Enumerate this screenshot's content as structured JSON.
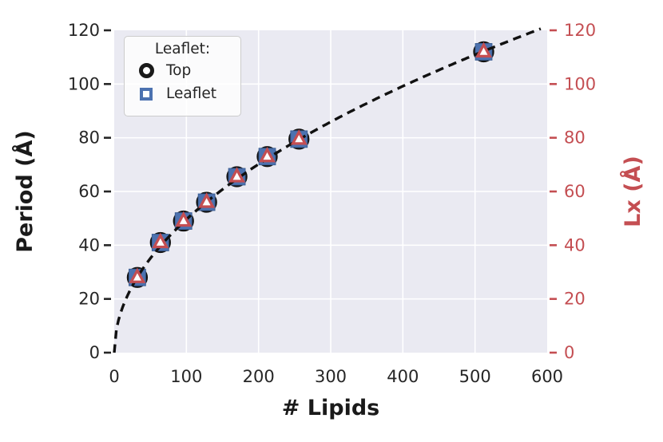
{
  "colors": {
    "figure_bg": "#ffffff",
    "plot_bg": "#eaeaf2",
    "grid": "#ffffff",
    "blue": "#4c72b0",
    "blue_edge": "#3d5f94",
    "red": "#c44e52",
    "dark_text": "#262626",
    "line_black": "#111111",
    "marker_face": "#ffffff"
  },
  "legend": {
    "title": "Leaflet:",
    "items": [
      {
        "label": "Top",
        "marker": "open-circle",
        "color": "#1a1a1a"
      },
      {
        "label": "Leaflet",
        "marker": "open-square",
        "color": "#4c72b0"
      }
    ]
  },
  "chart_data": {
    "type": "scatter",
    "title": "",
    "xlabel": "# Lipids",
    "ylabel_left": "Period (Å)",
    "ylabel_right": "Lx (Å)",
    "xlim": [
      0,
      600
    ],
    "ylim_left": [
      0,
      120
    ],
    "ylim_right": [
      0,
      120
    ],
    "x_ticks": [
      0,
      100,
      200,
      300,
      400,
      500,
      600
    ],
    "y_ticks_left": [
      0,
      20,
      40,
      60,
      80,
      100,
      120
    ],
    "y_ticks_right": [
      0,
      20,
      40,
      60,
      80,
      100,
      120
    ],
    "grid": true,
    "legend_position": "upper left",
    "x": [
      32,
      64,
      96,
      128,
      170,
      212,
      256,
      512
    ],
    "series": [
      {
        "name": "Top",
        "axis": "left",
        "marker": "circle-open",
        "color": "#111111",
        "values": [
          28,
          41,
          49,
          56,
          65.5,
          73,
          79.5,
          112
        ]
      },
      {
        "name": "Leaflet",
        "axis": "left",
        "marker": "square-filled",
        "color": "#4c72b0",
        "values": [
          28,
          41,
          49,
          56,
          65.5,
          73,
          79.5,
          112
        ]
      },
      {
        "name": "Lx",
        "axis": "right",
        "marker": "triangle-open",
        "color": "#c44e52",
        "values": [
          28,
          41,
          49,
          56,
          65.5,
          73,
          79.5,
          112
        ]
      }
    ],
    "fit_line": {
      "type": "sqrt",
      "coefficient": 4.96,
      "style": "dashed",
      "color": "#111111"
    }
  }
}
